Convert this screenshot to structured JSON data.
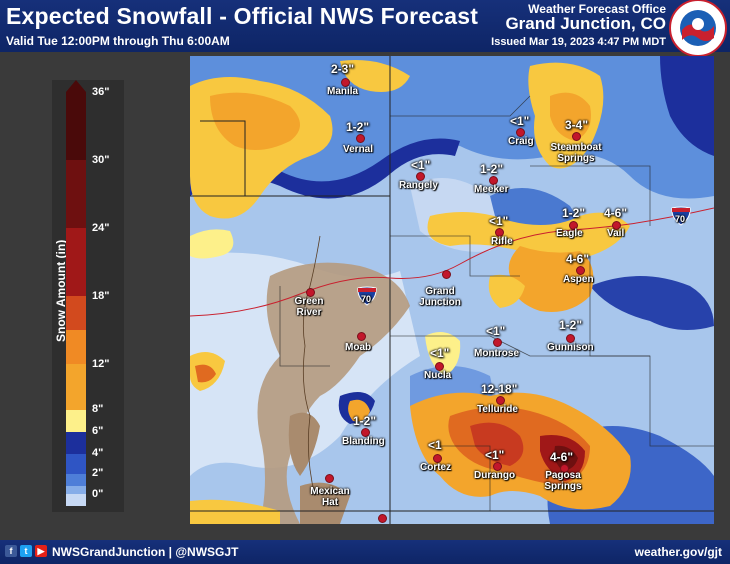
{
  "header": {
    "title": "Expected Snowfall - Official NWS Forecast",
    "subtitle": "Valid Tue 12:00PM through Thu 6:00AM",
    "office_line1": "Weather Forecast Office",
    "office_line2": "Grand Junction, CO",
    "issued": "Issued Mar 19, 2023 4:47 PM MDT",
    "logo_icon": "nws-logo",
    "logo_text": "NATIONAL WEATHER SERVICE"
  },
  "legend": {
    "title": "Snow Amount (in)",
    "ticks": [
      "36\"",
      "30\"",
      "24\"",
      "18\"",
      "12\"",
      "8\"",
      "6\"",
      "4\"",
      "2\"",
      "0\""
    ],
    "colors": [
      "#4a0a0a",
      "#6e1010",
      "#a01818",
      "#c83a20",
      "#e06a20",
      "#f39c2c",
      "#f8c840",
      "#fdf08a",
      "#1c2f9c",
      "#2f55c4",
      "#4e7ed8",
      "#86ade8",
      "#c7d9f4"
    ]
  },
  "map": {
    "interstate_label": "70",
    "cities": [
      {
        "name": "Manila",
        "amount": "2-3\""
      },
      {
        "name": "Vernal",
        "amount": "1-2\""
      },
      {
        "name": "Craig",
        "amount": "<1\""
      },
      {
        "name": "Steamboat Springs",
        "amount": "3-4\""
      },
      {
        "name": "Rangely",
        "amount": "<1\""
      },
      {
        "name": "Meeker",
        "amount": "1-2\""
      },
      {
        "name": "Rifle",
        "amount": "<1\""
      },
      {
        "name": "Eagle",
        "amount": "1-2\""
      },
      {
        "name": "Vail",
        "amount": "4-6\""
      },
      {
        "name": "Aspen",
        "amount": "4-6\""
      },
      {
        "name": "Green River",
        "amount": ""
      },
      {
        "name": "Grand Junction",
        "amount": ""
      },
      {
        "name": "Moab",
        "amount": ""
      },
      {
        "name": "Montrose",
        "amount": "<1\""
      },
      {
        "name": "Gunnison",
        "amount": "1-2\""
      },
      {
        "name": "Nucla",
        "amount": "<1\""
      },
      {
        "name": "Telluride",
        "amount": "12-18\""
      },
      {
        "name": "Blanding",
        "amount": "1-2\""
      },
      {
        "name": "Cortez",
        "amount": "<1"
      },
      {
        "name": "Durango",
        "amount": "<1\""
      },
      {
        "name": "Pagosa Springs",
        "amount": "4-6\""
      },
      {
        "name": "Mexican Hat",
        "amount": ""
      }
    ]
  },
  "footer": {
    "social_icons": [
      "facebook-icon",
      "twitter-icon",
      "youtube-icon"
    ],
    "handle": "NWSGrandJunction | @NWSGJT",
    "website": "weather.gov/gjt"
  }
}
